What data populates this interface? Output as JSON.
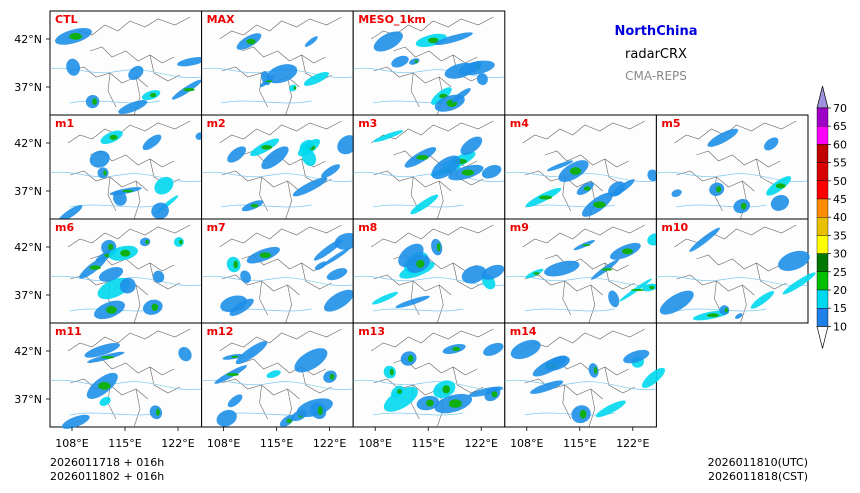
{
  "header": {
    "region": "NorthChina",
    "variable": "radarCRX",
    "model": "CMA-REPS",
    "region_color": "#0000dd",
    "model_color": "#888888"
  },
  "panels": [
    {
      "label": "CTL",
      "row": 0,
      "col": 0
    },
    {
      "label": "MAX",
      "row": 0,
      "col": 1
    },
    {
      "label": "MESO_1km",
      "row": 0,
      "col": 2
    },
    {
      "label": "m1",
      "row": 1,
      "col": 0
    },
    {
      "label": "m2",
      "row": 1,
      "col": 1
    },
    {
      "label": "m3",
      "row": 1,
      "col": 2
    },
    {
      "label": "m4",
      "row": 1,
      "col": 3
    },
    {
      "label": "m5",
      "row": 1,
      "col": 4
    },
    {
      "label": "m6",
      "row": 2,
      "col": 0
    },
    {
      "label": "m7",
      "row": 2,
      "col": 1
    },
    {
      "label": "m8",
      "row": 2,
      "col": 2
    },
    {
      "label": "m9",
      "row": 2,
      "col": 3
    },
    {
      "label": "m10",
      "row": 2,
      "col": 4
    },
    {
      "label": "m11",
      "row": 3,
      "col": 0
    },
    {
      "label": "m12",
      "row": 3,
      "col": 1
    },
    {
      "label": "m13",
      "row": 3,
      "col": 2
    },
    {
      "label": "m14",
      "row": 3,
      "col": 3
    }
  ],
  "panel_label_color": "#ee0000",
  "lat_labels": [
    "42°N",
    "37°N"
  ],
  "lon_labels": [
    "108°E",
    "115°E",
    "122°E"
  ],
  "colorbar": {
    "ticks": [
      "70",
      "65",
      "60",
      "55",
      "50",
      "45",
      "40",
      "35",
      "30",
      "25",
      "20",
      "15",
      "10"
    ],
    "colors": [
      "#1e7fe8",
      "#00d8f0",
      "#00c000",
      "#007800",
      "#ffff00",
      "#e8c000",
      "#ff8c00",
      "#ff0000",
      "#d80000",
      "#c00000",
      "#ff00ff",
      "#9e00c8",
      "#a090e0"
    ]
  },
  "footer": {
    "init_utc": "2026011718  +  016h",
    "init_cst": "2026011802  +  016h",
    "valid_utc": "2026011810(UTC)",
    "valid_cst": "2026011818(CST)"
  }
}
